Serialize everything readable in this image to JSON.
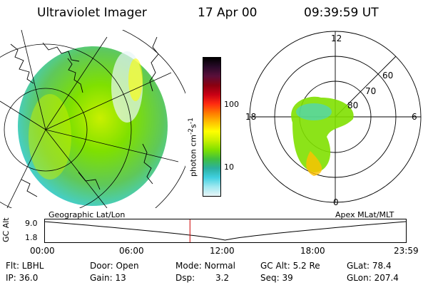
{
  "header": {
    "title": "Ultraviolet Imager",
    "date": "17 Apr 00",
    "time": "09:39:59 UT"
  },
  "colorbar": {
    "unit_label": "photon cm",
    "unit_exp1": "-2",
    "unit_mid": "s",
    "unit_exp2": "-1",
    "ticks": [
      "100",
      "10"
    ],
    "colors": [
      "#000000",
      "#2a0a2a",
      "#5a0f3a",
      "#8a0010",
      "#c80014",
      "#ff2a10",
      "#ff7a00",
      "#ffc000",
      "#ffff00",
      "#c8f000",
      "#7fe000",
      "#40c040",
      "#2bb0a0",
      "#40d0e0",
      "#a0e8f0",
      "#e8f6f8"
    ]
  },
  "geo_panel": {
    "caption": "Geographic Lat/Lon"
  },
  "polar_panel": {
    "caption": "Apex MLat/MLT",
    "mlt_labels": {
      "top": "12",
      "right": "6",
      "bottom": "0",
      "left": "18"
    },
    "lat_labels": [
      "60",
      "70",
      "80"
    ]
  },
  "altitude_plot": {
    "ylabel": "GC Alt",
    "yticks": [
      "9.0",
      "1.8"
    ],
    "xticks": [
      "00:00",
      "06:00",
      "12:00",
      "18:00",
      "23:59"
    ],
    "marker_time_hours": 9.67
  },
  "footer": {
    "flt": "Flt: LBHL",
    "ip": "IP: 36.0",
    "door": "Door: Open",
    "gain": "Gain: 13",
    "mode": "Mode: Normal",
    "dsp_label": "Dsp:",
    "dsp_value": "3.2",
    "gc_alt": "GC Alt: 5.2 Re",
    "seq": "Seq: 39",
    "glat": "GLat: 78.4",
    "glon": "GLon: 207.4"
  }
}
